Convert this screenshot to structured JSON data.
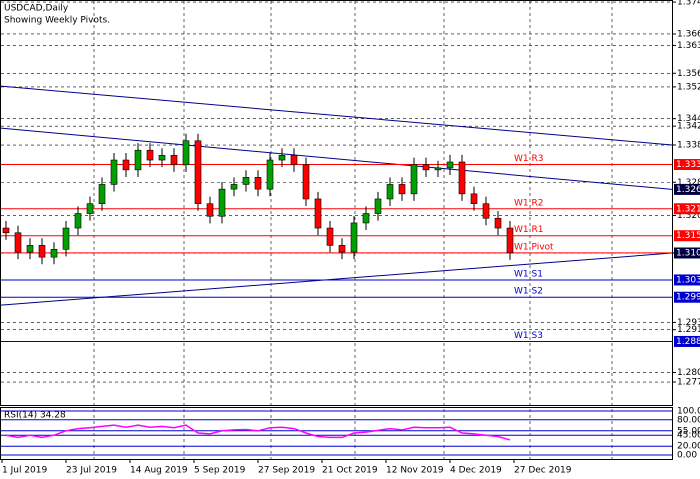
{
  "chart_data": {
    "type": "candlestick",
    "title": "USDCAD,Daily",
    "subtitle": "Showing Weekly Pivots.",
    "ylim": [
      1.272,
      1.375
    ],
    "yticks": [
      1.37447,
      1.36636,
      1.36345,
      1.35636,
      {
        "value": 1.3529,
        "label": "1.35290"
      },
      1.34482,
      1.34292,
      1.33812,
      1.32865,
      {
        "value": 1.3202,
        "label": "1.32020"
      },
      1.31065,
      1.29301,
      1.29116,
      1.28026,
      1.27784
    ],
    "grid": true,
    "up_color": "#00a000",
    "down_color": "#ff0000",
    "open": [
      1.317,
      1.3158,
      1.3109,
      1.3126,
      1.3096,
      1.3116,
      1.317,
      1.3207,
      1.3232,
      1.3281,
      1.3343,
      1.3318,
      1.3368,
      1.3343,
      1.3355,
      1.3331,
      1.3392,
      1.3232,
      1.32,
      1.3269,
      1.3281,
      1.3299,
      1.3269,
      1.3343,
      1.3355,
      1.3331,
      1.3244,
      1.317,
      1.3126,
      1.3109,
      1.3183,
      1.3207,
      1.3244,
      1.3281,
      1.3257,
      1.3331,
      1.3318,
      1.3323,
      1.3338,
      1.3257,
      1.3232,
      1.3195,
      1.317
    ],
    "high": [
      1.3188,
      1.3176,
      1.3144,
      1.3144,
      1.3134,
      1.3188,
      1.3225,
      1.325,
      1.3299,
      1.3361,
      1.3361,
      1.3386,
      1.3386,
      1.3373,
      1.3373,
      1.341,
      1.341,
      1.325,
      1.3287,
      1.3299,
      1.3317,
      1.3317,
      1.3361,
      1.3373,
      1.3373,
      1.3349,
      1.3262,
      1.3188,
      1.3144,
      1.3201,
      1.3225,
      1.3262,
      1.3299,
      1.3299,
      1.3349,
      1.3349,
      1.3341,
      1.3356,
      1.3356,
      1.3275,
      1.325,
      1.3213,
      1.3188
    ],
    "low": [
      1.314,
      1.3091,
      1.3091,
      1.3078,
      1.3078,
      1.3098,
      1.3152,
      1.3189,
      1.3214,
      1.3263,
      1.33,
      1.33,
      1.3325,
      1.3325,
      1.3313,
      1.3313,
      1.3214,
      1.3182,
      1.3182,
      1.3251,
      1.3263,
      1.3251,
      1.3251,
      1.3325,
      1.3313,
      1.3226,
      1.3152,
      1.3108,
      1.3091,
      1.3091,
      1.3165,
      1.3189,
      1.3226,
      1.3239,
      1.3239,
      1.33,
      1.33,
      1.3305,
      1.3239,
      1.3214,
      1.3177,
      1.3152,
      1.3089
    ],
    "close": [
      1.3158,
      1.3109,
      1.3126,
      1.3096,
      1.3116,
      1.317,
      1.3207,
      1.3232,
      1.3281,
      1.3343,
      1.3318,
      1.3368,
      1.3343,
      1.3355,
      1.3331,
      1.3392,
      1.3232,
      1.32,
      1.3269,
      1.3281,
      1.3299,
      1.3269,
      1.3343,
      1.3355,
      1.3331,
      1.3244,
      1.317,
      1.3126,
      1.3109,
      1.3183,
      1.3207,
      1.3244,
      1.3281,
      1.3257,
      1.3331,
      1.3318,
      1.3323,
      1.3338,
      1.3257,
      1.3232,
      1.3195,
      1.317,
      1.3107
    ],
    "levels": [
      {
        "name": "W1 R3",
        "value": 1.33316,
        "color": "#ff0000"
      },
      {
        "name": "W1 R2",
        "value": 1.32191,
        "color": "#ff0000"
      },
      {
        "name": "W1 R1",
        "value": 1.31505,
        "color": "#ff0000"
      },
      {
        "name": "W1 Pivot",
        "value": 1.3107,
        "color": "#ff0000"
      },
      {
        "name": "W1 S1",
        "value": 1.3038,
        "label": "1.30380",
        "color": "#0000cd"
      },
      {
        "name": "W1 S2",
        "value": 1.29941,
        "color": "#0000cd"
      },
      {
        "name": "W1 S3",
        "value": 1.28816,
        "color": "#0000cd"
      }
    ],
    "price_boxes": [
      1.32683,
      1.31066
    ],
    "trendlines": [
      {
        "start": 1.3531,
        "end": 1.33812
      },
      {
        "start": 1.3424,
        "end": 1.32683
      },
      {
        "start": 1.2974,
        "end": 1.31065
      }
    ],
    "x_labels": [
      "1 Jul 2019",
      "23 Jul 2019",
      "14 Aug 2019",
      "5 Sep 2019",
      "27 Sep 2019",
      "21 Oct 2019",
      "12 Nov 2019",
      "4 Dec 2019",
      "27 Dec 2019"
    ],
    "rsi": {
      "label": "RSI(14) 34.28",
      "color": "#ff00ff",
      "ylim": [
        0,
        100
      ],
      "yticks": [
        {
          "value": 100,
          "label": "100.00"
        },
        {
          "value": 80,
          "label": "80.00"
        },
        {
          "value": 55,
          "label": "55.00"
        },
        {
          "value": 45,
          "label": "45.00"
        },
        {
          "value": 20,
          "label": "20.00"
        },
        {
          "value": 0,
          "label": "0.00"
        }
      ],
      "values": [
        45,
        40,
        45,
        40,
        45,
        55,
        60,
        62,
        65,
        68,
        63,
        68,
        63,
        65,
        62,
        68,
        50,
        48,
        55,
        57,
        58,
        55,
        62,
        63,
        60,
        50,
        42,
        40,
        40,
        50,
        52,
        56,
        60,
        57,
        63,
        62,
        62,
        63,
        50,
        48,
        45,
        42,
        34.28
      ]
    }
  }
}
